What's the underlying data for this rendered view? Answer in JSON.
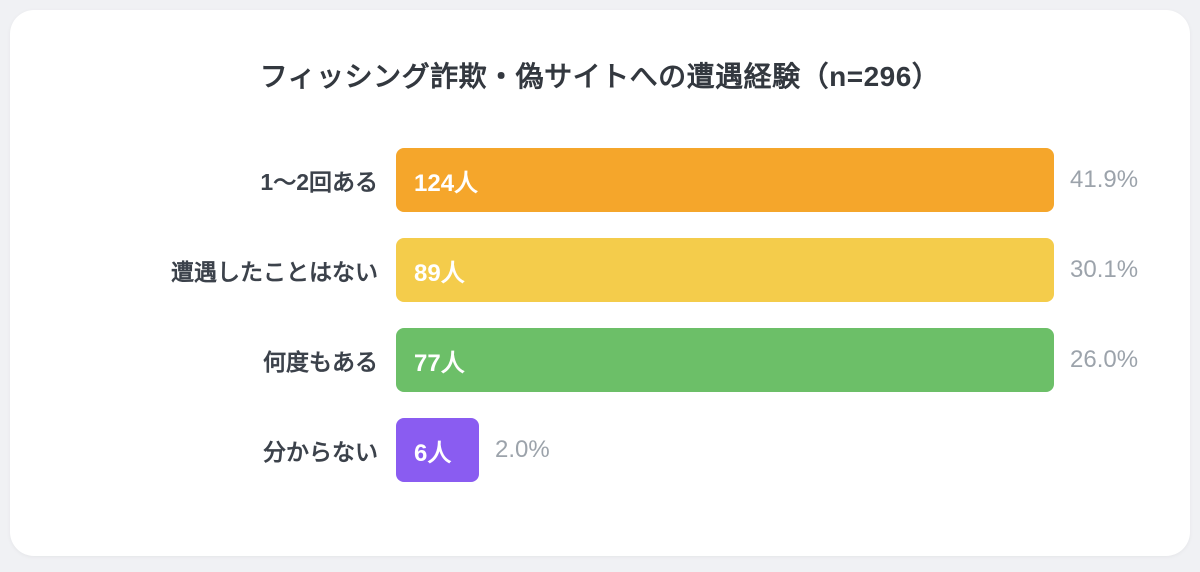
{
  "page": {
    "background_color": "#F0F1F4",
    "card_color": "#FFFFFF"
  },
  "chart_data": {
    "type": "bar",
    "orientation": "horizontal",
    "title": "フィッシング詐欺・偽サイトへの遭遇経験（n=296）",
    "sample_size": 296,
    "unit": "人",
    "legend": "none",
    "grid": "off",
    "categories": [
      "1〜2回ある",
      "遭遇したことはない",
      "何度もある",
      "分からない"
    ],
    "values": [
      124,
      89,
      77,
      6
    ],
    "percents": [
      41.9,
      30.1,
      26.0,
      2.0
    ],
    "rows": [
      {
        "label": "1〜2回ある",
        "value": 124,
        "value_label": "124人",
        "percent_label": "41.9%",
        "color": "#F5A62B",
        "width_pct": 100
      },
      {
        "label": "遭遇したことはない",
        "value": 89,
        "value_label": "89人",
        "percent_label": "30.1%",
        "color": "#F4CC4B",
        "width_pct": 100
      },
      {
        "label": "何度もある",
        "value": 77,
        "value_label": "77人",
        "percent_label": "26.0%",
        "color": "#6CBF68",
        "width_pct": 100
      },
      {
        "label": "分からない",
        "value": 6,
        "value_label": "6人",
        "percent_label": "2.0%",
        "color": "#8A5CF1",
        "width_pct": 12.6
      }
    ],
    "text_colors": {
      "title": "#33383F",
      "category_label": "#3C424B",
      "bar_value": "#FFFFFF",
      "percent_label": "#9CA3AB"
    },
    "layout_note": "top three bars render at equal full track width; only the smallest bar is shortened"
  }
}
